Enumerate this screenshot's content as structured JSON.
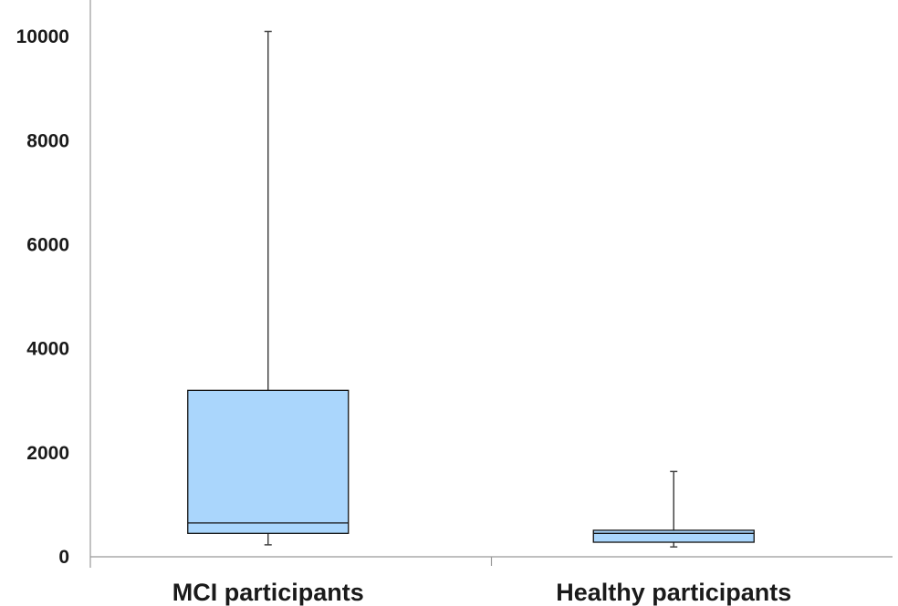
{
  "chart_data": {
    "type": "boxplot",
    "categories": [
      "MCI participants",
      "Healthy participants"
    ],
    "series": [
      {
        "boxes": [
          {
            "category": "MCI participants",
            "whisker_low": 230,
            "q1": 450,
            "median": 650,
            "q3": 3200,
            "whisker_high": 10100
          },
          {
            "category": "Healthy participants",
            "whisker_low": 190,
            "q1": 280,
            "median": 450,
            "q3": 510,
            "whisker_high": 1640
          }
        ]
      }
    ],
    "y_ticks": [
      "0",
      "2000",
      "4000",
      "6000",
      "8000",
      "10000"
    ],
    "ylim": [
      0,
      10500
    ],
    "title": "",
    "xlabel": "",
    "ylabel": "",
    "grid": false,
    "colors": {
      "box_fill": "#aad6fc",
      "box_stroke": "#111111",
      "axis": "#999999",
      "whisker": "#444444"
    }
  }
}
